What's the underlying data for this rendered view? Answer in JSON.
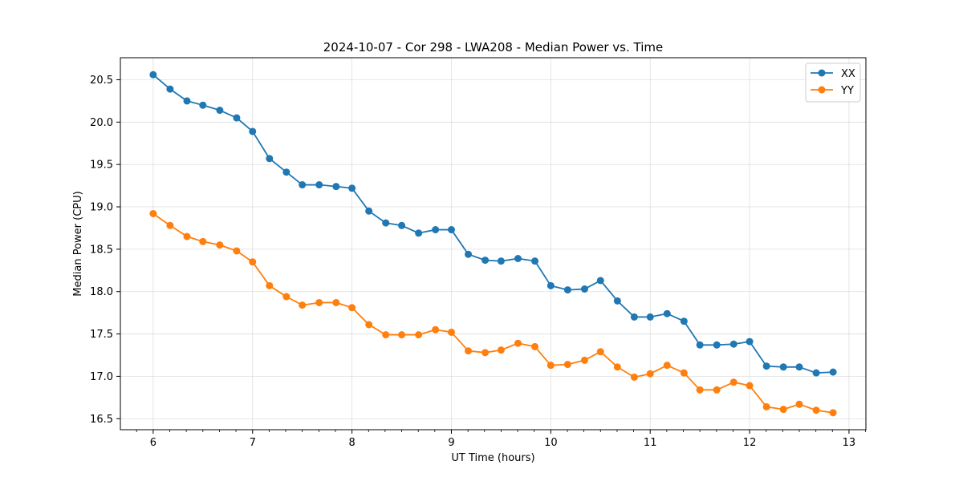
{
  "chart_data": {
    "type": "line",
    "title": "2024-10-07 - Cor 298 - LWA208 - Median Power vs. Time",
    "xlabel": "UT Time (hours)",
    "ylabel": "Median Power (CPU)",
    "xlim": [
      5.67,
      13.17
    ],
    "ylim": [
      16.37,
      20.76
    ],
    "xticks": [
      6,
      7,
      8,
      9,
      10,
      11,
      12,
      13
    ],
    "xtick_labels": [
      "6",
      "7",
      "8",
      "9",
      "10",
      "11",
      "12",
      "13"
    ],
    "yticks": [
      16.5,
      17.0,
      17.5,
      18.0,
      18.5,
      19.0,
      19.5,
      20.0,
      20.5
    ],
    "ytick_labels": [
      "16.5",
      "17.0",
      "17.5",
      "18.0",
      "18.5",
      "19.0",
      "19.5",
      "20.0",
      "20.5"
    ],
    "grid": true,
    "legend": "top-right",
    "x": [
      6.0,
      6.17,
      6.34,
      6.5,
      6.67,
      6.84,
      7.0,
      7.17,
      7.34,
      7.5,
      7.67,
      7.84,
      8.0,
      8.17,
      8.34,
      8.5,
      8.67,
      8.84,
      9.0,
      9.17,
      9.34,
      9.5,
      9.67,
      9.84,
      10.0,
      10.17,
      10.34,
      10.5,
      10.67,
      10.84,
      11.0,
      11.17,
      11.34,
      11.5,
      11.67,
      11.84,
      12.0,
      12.17,
      12.34,
      12.5,
      12.67,
      12.84
    ],
    "series": [
      {
        "name": "XX",
        "color": "#1f77b4",
        "values": [
          20.56,
          20.39,
          20.25,
          20.2,
          20.14,
          20.05,
          19.89,
          19.57,
          19.41,
          19.26,
          19.26,
          19.24,
          19.22,
          18.95,
          18.81,
          18.78,
          18.69,
          18.73,
          18.73,
          18.44,
          18.37,
          18.36,
          18.39,
          18.36,
          18.07,
          18.02,
          18.03,
          18.13,
          17.89,
          17.7,
          17.7,
          17.74,
          17.65,
          17.37,
          17.37,
          17.38,
          17.41,
          17.12,
          17.11,
          17.11,
          17.04,
          17.05
        ]
      },
      {
        "name": "YY",
        "color": "#ff7f0e",
        "values": [
          18.92,
          18.78,
          18.65,
          18.59,
          18.55,
          18.48,
          18.35,
          18.07,
          17.94,
          17.84,
          17.87,
          17.87,
          17.81,
          17.61,
          17.49,
          17.49,
          17.49,
          17.55,
          17.52,
          17.3,
          17.28,
          17.31,
          17.39,
          17.35,
          17.13,
          17.14,
          17.19,
          17.29,
          17.11,
          16.99,
          17.03,
          17.13,
          17.04,
          16.84,
          16.84,
          16.93,
          16.89,
          16.64,
          16.61,
          16.67,
          16.6,
          16.57
        ]
      }
    ]
  }
}
